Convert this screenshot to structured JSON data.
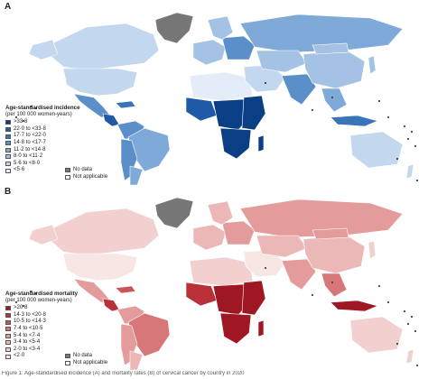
{
  "panels": [
    {
      "letter": "A",
      "legend": {
        "title": "Age-standardised incidence",
        "unit": "(per 100 000 women-years)",
        "classes": [
          {
            "label": ">33·8",
            "color": "#0b3f85"
          },
          {
            "label": "22·0 to <33·8",
            "color": "#1f5aa6"
          },
          {
            "label": "17·7 to <22·0",
            "color": "#3a74b8"
          },
          {
            "label": "14·8 to <17·7",
            "color": "#5a8fca"
          },
          {
            "label": "11·2 to <14·8",
            "color": "#7ea9d8"
          },
          {
            "label": "8·0 to <11·2",
            "color": "#a3c2e4"
          },
          {
            "label": "5·6 to <8·0",
            "color": "#c3d7ee"
          },
          {
            "label": "<5·6",
            "color": "#e4edf7"
          }
        ],
        "no_data": {
          "label": "No data",
          "color": "#777777"
        },
        "not_applicable": {
          "label": "Not applicable",
          "color": "#ffffff"
        }
      }
    },
    {
      "letter": "B",
      "legend": {
        "title": "Age-standardised mortality",
        "unit": "(per 100 000 women-years)",
        "classes": [
          {
            "label": ">20·8",
            "color": "#9e1722"
          },
          {
            "label": "14·3 to <20·8",
            "color": "#b93038"
          },
          {
            "label": "10·5 to <14·3",
            "color": "#cb5459"
          },
          {
            "label": "7·4 to <10·5",
            "color": "#d8777a"
          },
          {
            "label": "5·4 to <7·4",
            "color": "#e39b9c"
          },
          {
            "label": "3·4 to <5·4",
            "color": "#ebb7b7"
          },
          {
            "label": "2·0 to <3·4",
            "color": "#f2d0cf"
          },
          {
            "label": "<2·0",
            "color": "#f8e6e5"
          }
        ],
        "no_data": {
          "label": "No data",
          "color": "#777777"
        },
        "not_applicable": {
          "label": "Not applicable",
          "color": "#ffffff"
        }
      }
    }
  ],
  "caption": "Figure 1: Age-standardised incidence (A) and mortality rates (B) of cervical cancer by country in 2020"
}
